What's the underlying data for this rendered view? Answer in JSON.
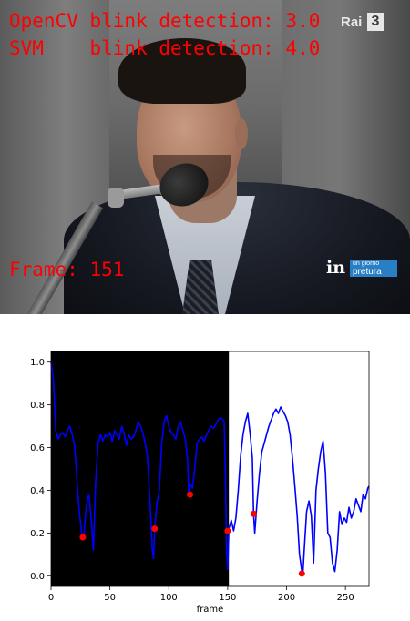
{
  "video": {
    "opencv_line": "OpenCV blink detection: 3.0",
    "svm_line": "SVM    blink detection: 4.0",
    "frame_line": "Frame: 151",
    "channel_logo": {
      "text": "Rai",
      "number": "3"
    },
    "program_badge": {
      "in": "in",
      "line1": "un giorno",
      "line2": "pretura"
    },
    "overlay_color": "#ff0000"
  },
  "chart_data": {
    "type": "line",
    "xlabel": "frame",
    "ylabel": "",
    "xlim": [
      0,
      270
    ],
    "ylim": [
      -0.05,
      1.05
    ],
    "x_ticks": [
      0,
      50,
      100,
      150,
      200,
      250
    ],
    "y_ticks": [
      0.0,
      0.2,
      0.4,
      0.6,
      0.8,
      1.0
    ],
    "grid": false,
    "shaded_region": {
      "from": 0,
      "to": 151,
      "color": "#000000"
    },
    "series": [
      {
        "color": "#0000ff",
        "points": [
          [
            0,
            1.0
          ],
          [
            2,
            0.92
          ],
          [
            4,
            0.68
          ],
          [
            6,
            0.64
          ],
          [
            8,
            0.66
          ],
          [
            10,
            0.67
          ],
          [
            12,
            0.65
          ],
          [
            14,
            0.68
          ],
          [
            16,
            0.7
          ],
          [
            18,
            0.66
          ],
          [
            20,
            0.61
          ],
          [
            22,
            0.45
          ],
          [
            24,
            0.3
          ],
          [
            26,
            0.2
          ],
          [
            27,
            0.18
          ],
          [
            28,
            0.2
          ],
          [
            30,
            0.33
          ],
          [
            32,
            0.38
          ],
          [
            34,
            0.28
          ],
          [
            36,
            0.12
          ],
          [
            38,
            0.45
          ],
          [
            40,
            0.62
          ],
          [
            42,
            0.66
          ],
          [
            44,
            0.63
          ],
          [
            46,
            0.66
          ],
          [
            48,
            0.65
          ],
          [
            50,
            0.67
          ],
          [
            52,
            0.63
          ],
          [
            54,
            0.68
          ],
          [
            56,
            0.66
          ],
          [
            58,
            0.64
          ],
          [
            60,
            0.7
          ],
          [
            62,
            0.67
          ],
          [
            64,
            0.61
          ],
          [
            66,
            0.66
          ],
          [
            68,
            0.64
          ],
          [
            70,
            0.65
          ],
          [
            72,
            0.68
          ],
          [
            74,
            0.72
          ],
          [
            76,
            0.7
          ],
          [
            78,
            0.67
          ],
          [
            80,
            0.62
          ],
          [
            82,
            0.55
          ],
          [
            84,
            0.35
          ],
          [
            86,
            0.12
          ],
          [
            87,
            0.08
          ],
          [
            88,
            0.22
          ],
          [
            90,
            0.34
          ],
          [
            92,
            0.4
          ],
          [
            94,
            0.62
          ],
          [
            96,
            0.72
          ],
          [
            98,
            0.75
          ],
          [
            100,
            0.7
          ],
          [
            102,
            0.67
          ],
          [
            104,
            0.66
          ],
          [
            106,
            0.64
          ],
          [
            108,
            0.7
          ],
          [
            110,
            0.72
          ],
          [
            112,
            0.68
          ],
          [
            114,
            0.64
          ],
          [
            116,
            0.54
          ],
          [
            117,
            0.38
          ],
          [
            118,
            0.43
          ],
          [
            120,
            0.41
          ],
          [
            122,
            0.5
          ],
          [
            124,
            0.62
          ],
          [
            126,
            0.64
          ],
          [
            128,
            0.65
          ],
          [
            130,
            0.63
          ],
          [
            132,
            0.66
          ],
          [
            134,
            0.68
          ],
          [
            136,
            0.7
          ],
          [
            138,
            0.69
          ],
          [
            140,
            0.71
          ],
          [
            142,
            0.73
          ],
          [
            144,
            0.74
          ],
          [
            146,
            0.73
          ],
          [
            147,
            0.72
          ],
          [
            148,
            0.5
          ],
          [
            149,
            0.12
          ],
          [
            150,
            0.03
          ],
          [
            151,
            0.22
          ],
          [
            153,
            0.26
          ],
          [
            155,
            0.21
          ],
          [
            157,
            0.27
          ],
          [
            159,
            0.4
          ],
          [
            161,
            0.56
          ],
          [
            163,
            0.66
          ],
          [
            165,
            0.72
          ],
          [
            167,
            0.76
          ],
          [
            169,
            0.67
          ],
          [
            171,
            0.55
          ],
          [
            172,
            0.29
          ],
          [
            173,
            0.2
          ],
          [
            175,
            0.35
          ],
          [
            177,
            0.48
          ],
          [
            179,
            0.58
          ],
          [
            181,
            0.62
          ],
          [
            183,
            0.66
          ],
          [
            185,
            0.7
          ],
          [
            187,
            0.73
          ],
          [
            189,
            0.76
          ],
          [
            191,
            0.78
          ],
          [
            193,
            0.76
          ],
          [
            195,
            0.79
          ],
          [
            197,
            0.77
          ],
          [
            199,
            0.75
          ],
          [
            201,
            0.72
          ],
          [
            203,
            0.66
          ],
          [
            205,
            0.55
          ],
          [
            207,
            0.42
          ],
          [
            209,
            0.28
          ],
          [
            211,
            0.1
          ],
          [
            213,
            0.02
          ],
          [
            214,
            0.02
          ],
          [
            215,
            0.12
          ],
          [
            217,
            0.3
          ],
          [
            219,
            0.35
          ],
          [
            221,
            0.28
          ],
          [
            223,
            0.06
          ],
          [
            225,
            0.4
          ],
          [
            227,
            0.5
          ],
          [
            229,
            0.58
          ],
          [
            231,
            0.63
          ],
          [
            233,
            0.48
          ],
          [
            235,
            0.2
          ],
          [
            237,
            0.18
          ],
          [
            239,
            0.06
          ],
          [
            241,
            0.02
          ],
          [
            243,
            0.12
          ],
          [
            245,
            0.3
          ],
          [
            247,
            0.24
          ],
          [
            249,
            0.27
          ],
          [
            251,
            0.25
          ],
          [
            253,
            0.32
          ],
          [
            255,
            0.27
          ],
          [
            257,
            0.3
          ],
          [
            259,
            0.36
          ],
          [
            261,
            0.33
          ],
          [
            263,
            0.3
          ],
          [
            265,
            0.38
          ],
          [
            267,
            0.36
          ],
          [
            269,
            0.41
          ],
          [
            270,
            0.42
          ]
        ]
      }
    ],
    "markers": {
      "color": "#ff0000",
      "points": [
        [
          27,
          0.18
        ],
        [
          88,
          0.22
        ],
        [
          118,
          0.38
        ],
        [
          150,
          0.21
        ],
        [
          172,
          0.29
        ],
        [
          213,
          0.01
        ]
      ]
    }
  }
}
